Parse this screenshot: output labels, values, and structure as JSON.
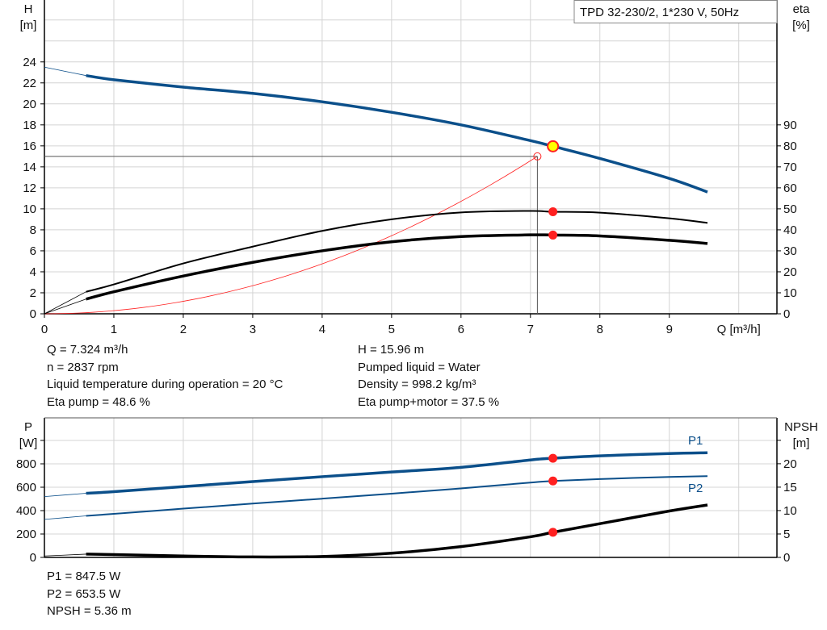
{
  "legend_title": "TPD 32-230/2, 1*230 V, 50Hz",
  "colors": {
    "blue": "#0b4f8a",
    "black": "#000000",
    "red": "#ff2020",
    "yellow": "#ffff00",
    "grid": "#d4d4d4"
  },
  "chart_data": [
    {
      "type": "line",
      "title": "",
      "xlabel": "Q [m³/h]",
      "ylabel_left": "H",
      "ylabel_left_unit": "[m]",
      "ylabel_right": "eta",
      "ylabel_right_unit": "[%]",
      "x_ticks": [
        "0",
        "1",
        "2",
        "3",
        "4",
        "5",
        "6",
        "7",
        "8",
        "9"
      ],
      "y_left_ticks": [
        "0",
        "2",
        "4",
        "6",
        "8",
        "10",
        "12",
        "14",
        "16",
        "18",
        "20",
        "22",
        "24"
      ],
      "y_right_ticks": [
        "0",
        "10",
        "20",
        "30",
        "40",
        "50",
        "60",
        "70",
        "80",
        "90"
      ],
      "xlim": [
        0,
        10.55
      ],
      "ylim_left": [
        0,
        29.9
      ],
      "ylim_right": [
        0,
        149.5
      ],
      "grid": true,
      "series": [
        {
          "key": "H",
          "axis": "left",
          "color": "#0b4f8a",
          "extrapolated": [
            [
              0,
              23.5
            ],
            [
              0.3,
              23.1
            ],
            [
              0.6,
              22.7
            ]
          ],
          "points": [
            [
              0.6,
              22.7
            ],
            [
              1,
              22.3
            ],
            [
              2,
              21.6
            ],
            [
              3,
              21.0
            ],
            [
              4,
              20.2
            ],
            [
              5,
              19.2
            ],
            [
              6,
              18.0
            ],
            [
              7,
              16.5
            ],
            [
              7.324,
              15.96
            ],
            [
              8,
              14.8
            ],
            [
              9,
              12.9
            ],
            [
              9.55,
              11.6
            ]
          ]
        },
        {
          "key": "eta-pump",
          "axis": "right",
          "color": "#000000",
          "extrapolated": [
            [
              0,
              0
            ],
            [
              0.6,
              10.5
            ]
          ],
          "points": [
            [
              0.6,
              10.5
            ],
            [
              1,
              14
            ],
            [
              2,
              24
            ],
            [
              3,
              32
            ],
            [
              4,
              39.5
            ],
            [
              5,
              45
            ],
            [
              6,
              48.3
            ],
            [
              7,
              49
            ],
            [
              7.324,
              48.6
            ],
            [
              8,
              48.2
            ],
            [
              9,
              45.5
            ],
            [
              9.55,
              43.3
            ]
          ]
        },
        {
          "key": "eta-pump-motor",
          "axis": "right",
          "color": "#000000",
          "extrapolated": [
            [
              0,
              0
            ],
            [
              0.6,
              7
            ]
          ],
          "points": [
            [
              0.6,
              7
            ],
            [
              1,
              10.5
            ],
            [
              2,
              18
            ],
            [
              3,
              24.5
            ],
            [
              4,
              30
            ],
            [
              5,
              34.3
            ],
            [
              6,
              36.8
            ],
            [
              7,
              37.6
            ],
            [
              7.324,
              37.5
            ],
            [
              8,
              37.1
            ],
            [
              9,
              35
            ],
            [
              9.55,
              33.5
            ]
          ]
        },
        {
          "key": "system-curve",
          "axis": "left",
          "color": "#ff2020",
          "quadratic_through": [
            7.1,
            15.0
          ]
        }
      ],
      "duty_point": {
        "Q": 7.324,
        "H": 15.96,
        "eta_pump": 48.6,
        "eta_pump_motor": 37.5
      },
      "requested_point": {
        "Q": 7.1,
        "H": 15.0
      }
    },
    {
      "type": "line",
      "title": "",
      "ylabel_left": "P",
      "ylabel_left_unit": "[W]",
      "ylabel_right": "NPSH",
      "ylabel_right_unit": "[m]",
      "xlim": [
        0,
        10.55
      ],
      "ylim_left": [
        0,
        1193
      ],
      "ylim_right": [
        0,
        29.8
      ],
      "y_left_ticks": [
        "0",
        "200",
        "400",
        "600",
        "800",
        ""
      ],
      "y_right_ticks": [
        "0",
        "5",
        "10",
        "15",
        "20",
        ""
      ],
      "grid": true,
      "series": [
        {
          "key": "P1",
          "name": "P1",
          "axis": "left",
          "color": "#0b4f8a",
          "extrapolated": [
            [
              0,
              520
            ],
            [
              0.6,
              548
            ]
          ],
          "points": [
            [
              0.6,
              548
            ],
            [
              1,
              562
            ],
            [
              2,
              605
            ],
            [
              3,
              648
            ],
            [
              4,
              690
            ],
            [
              5,
              730
            ],
            [
              6,
              770
            ],
            [
              7,
              833
            ],
            [
              7.324,
              847.5
            ],
            [
              8,
              868
            ],
            [
              9,
              888
            ],
            [
              9.55,
              895
            ]
          ]
        },
        {
          "key": "P2",
          "name": "P2",
          "axis": "left",
          "color": "#0b4f8a",
          "extrapolated": [
            [
              0,
              325
            ],
            [
              0.6,
              355
            ]
          ],
          "points": [
            [
              0.6,
              355
            ],
            [
              1,
              372
            ],
            [
              2,
              417
            ],
            [
              3,
              460
            ],
            [
              4,
              502
            ],
            [
              5,
              545
            ],
            [
              6,
              590
            ],
            [
              7,
              640
            ],
            [
              7.324,
              653.5
            ],
            [
              8,
              670
            ],
            [
              9,
              688
            ],
            [
              9.55,
              695
            ]
          ]
        },
        {
          "key": "NPSH",
          "axis": "right",
          "color": "#000000",
          "extrapolated": [
            [
              0,
              0.3
            ],
            [
              0.6,
              0.7
            ]
          ],
          "points": [
            [
              0.6,
              0.7
            ],
            [
              1,
              0.6
            ],
            [
              2,
              0.3
            ],
            [
              3,
              0.1
            ],
            [
              4,
              0.2
            ],
            [
              5,
              0.9
            ],
            [
              6,
              2.3
            ],
            [
              7,
              4.4
            ],
            [
              7.324,
              5.36
            ],
            [
              8,
              7.2
            ],
            [
              9,
              9.9
            ],
            [
              9.55,
              11.2
            ]
          ]
        }
      ]
    }
  ],
  "readouts_top_left": [
    "Q = 7.324 m³/h",
    "n = 2837 rpm",
    "Liquid temperature during operation = 20 °C",
    "Eta pump = 48.6 %"
  ],
  "readouts_top_right": [
    "H = 15.96 m",
    "Pumped liquid = Water",
    "Density = 998.2 kg/m³",
    "Eta pump+motor = 37.5 %"
  ],
  "readouts_bottom": [
    "P1 = 847.5 W",
    "P2 = 653.5 W",
    "NPSH = 5.36 m"
  ]
}
